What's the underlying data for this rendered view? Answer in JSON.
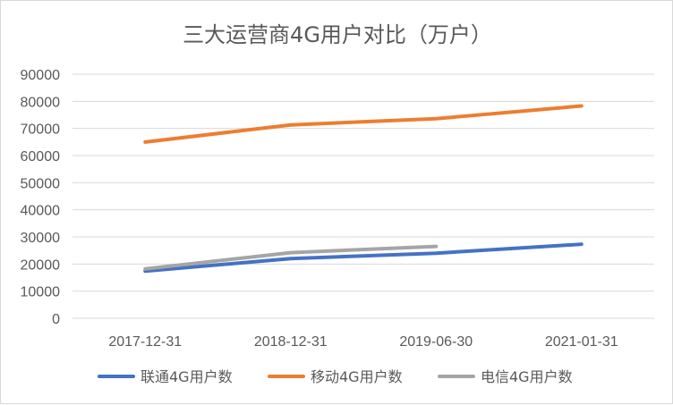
{
  "chart_data": {
    "type": "line",
    "title": "三大运营商4G用户对比（万户）",
    "categories": [
      "2017-12-31",
      "2018-12-31",
      "2019-06-30",
      "2021-01-31"
    ],
    "y_ticks": [
      "0",
      "10000",
      "20000",
      "30000",
      "40000",
      "50000",
      "60000",
      "70000",
      "80000",
      "90000"
    ],
    "ylim": [
      0,
      90000
    ],
    "grid": true,
    "legend_position": "bottom",
    "series": [
      {
        "name": "联通4G用户数",
        "color": "#4472C4",
        "values": [
          17400,
          22000,
          24000,
          27300
        ]
      },
      {
        "name": "移动4G用户数",
        "color": "#ED7D31",
        "values": [
          65000,
          71300,
          73600,
          78300
        ]
      },
      {
        "name": "电信4G用户数",
        "color": "#A5A5A5",
        "values": [
          18200,
          24200,
          26500,
          null
        ]
      }
    ]
  }
}
